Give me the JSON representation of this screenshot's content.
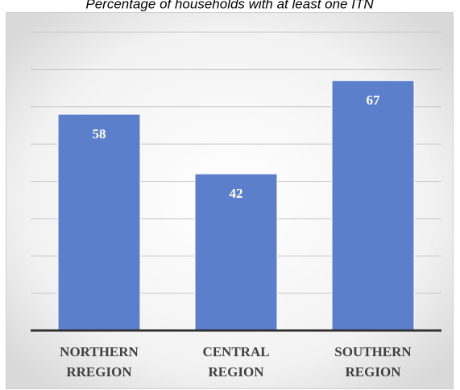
{
  "chart_data": {
    "type": "bar",
    "title": "Percentage of households with at least one ITN",
    "categories": [
      [
        "NORTHERN",
        "RREGION"
      ],
      [
        "CENTRAL",
        "REGION"
      ],
      [
        "SOUTHERN",
        "REGION"
      ]
    ],
    "values": [
      58,
      42,
      67
    ],
    "color": "#5b7fcb",
    "ylim": [
      0,
      80
    ],
    "yticks": [
      0,
      10,
      20,
      30,
      40,
      50,
      60,
      70,
      80
    ],
    "grid": true
  }
}
